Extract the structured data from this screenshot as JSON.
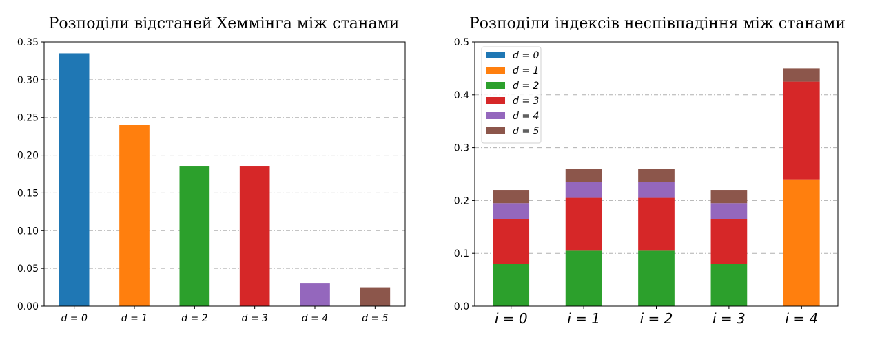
{
  "chart_data": [
    {
      "type": "bar",
      "title": "Розподіли відстаней Хеммінга між станами",
      "xlabel": "",
      "ylabel": "",
      "ylim": [
        0,
        0.35
      ],
      "yticks": [
        "0.00",
        "0.05",
        "0.10",
        "0.15",
        "0.20",
        "0.25",
        "0.30",
        "0.35"
      ],
      "grid": true,
      "categories": [
        "d = 0",
        "d = 1",
        "d = 2",
        "d = 3",
        "d = 4",
        "d = 5"
      ],
      "values": [
        0.335,
        0.24,
        0.185,
        0.185,
        0.03,
        0.025
      ],
      "colors": [
        "#1f77b4",
        "#ff7f0e",
        "#2ca02c",
        "#d62728",
        "#9467bd",
        "#8c564b"
      ]
    },
    {
      "type": "bar",
      "stacked": true,
      "title": "Розподіли індексів неспівпадіння між станами",
      "xlabel": "",
      "ylabel": "",
      "ylim": [
        0,
        0.5
      ],
      "yticks": [
        "0.0",
        "0.1",
        "0.2",
        "0.3",
        "0.4",
        "0.5"
      ],
      "grid": true,
      "legend_position": "top-left",
      "categories": [
        "i = 0",
        "i = 1",
        "i = 2",
        "i = 3",
        "i = 4"
      ],
      "series": [
        {
          "name": "d = 0",
          "color": "#1f77b4",
          "values": [
            0,
            0,
            0,
            0,
            0
          ]
        },
        {
          "name": "d = 1",
          "color": "#ff7f0e",
          "values": [
            0,
            0,
            0,
            0,
            0.24
          ]
        },
        {
          "name": "d = 2",
          "color": "#2ca02c",
          "values": [
            0.08,
            0.105,
            0.105,
            0.08,
            0
          ]
        },
        {
          "name": "d = 3",
          "color": "#d62728",
          "values": [
            0.085,
            0.1,
            0.1,
            0.085,
            0.185
          ]
        },
        {
          "name": "d = 4",
          "color": "#9467bd",
          "values": [
            0.03,
            0.03,
            0.03,
            0.03,
            0
          ]
        },
        {
          "name": "d = 5",
          "color": "#8c564b",
          "values": [
            0.025,
            0.025,
            0.025,
            0.025,
            0.025
          ]
        }
      ]
    }
  ]
}
